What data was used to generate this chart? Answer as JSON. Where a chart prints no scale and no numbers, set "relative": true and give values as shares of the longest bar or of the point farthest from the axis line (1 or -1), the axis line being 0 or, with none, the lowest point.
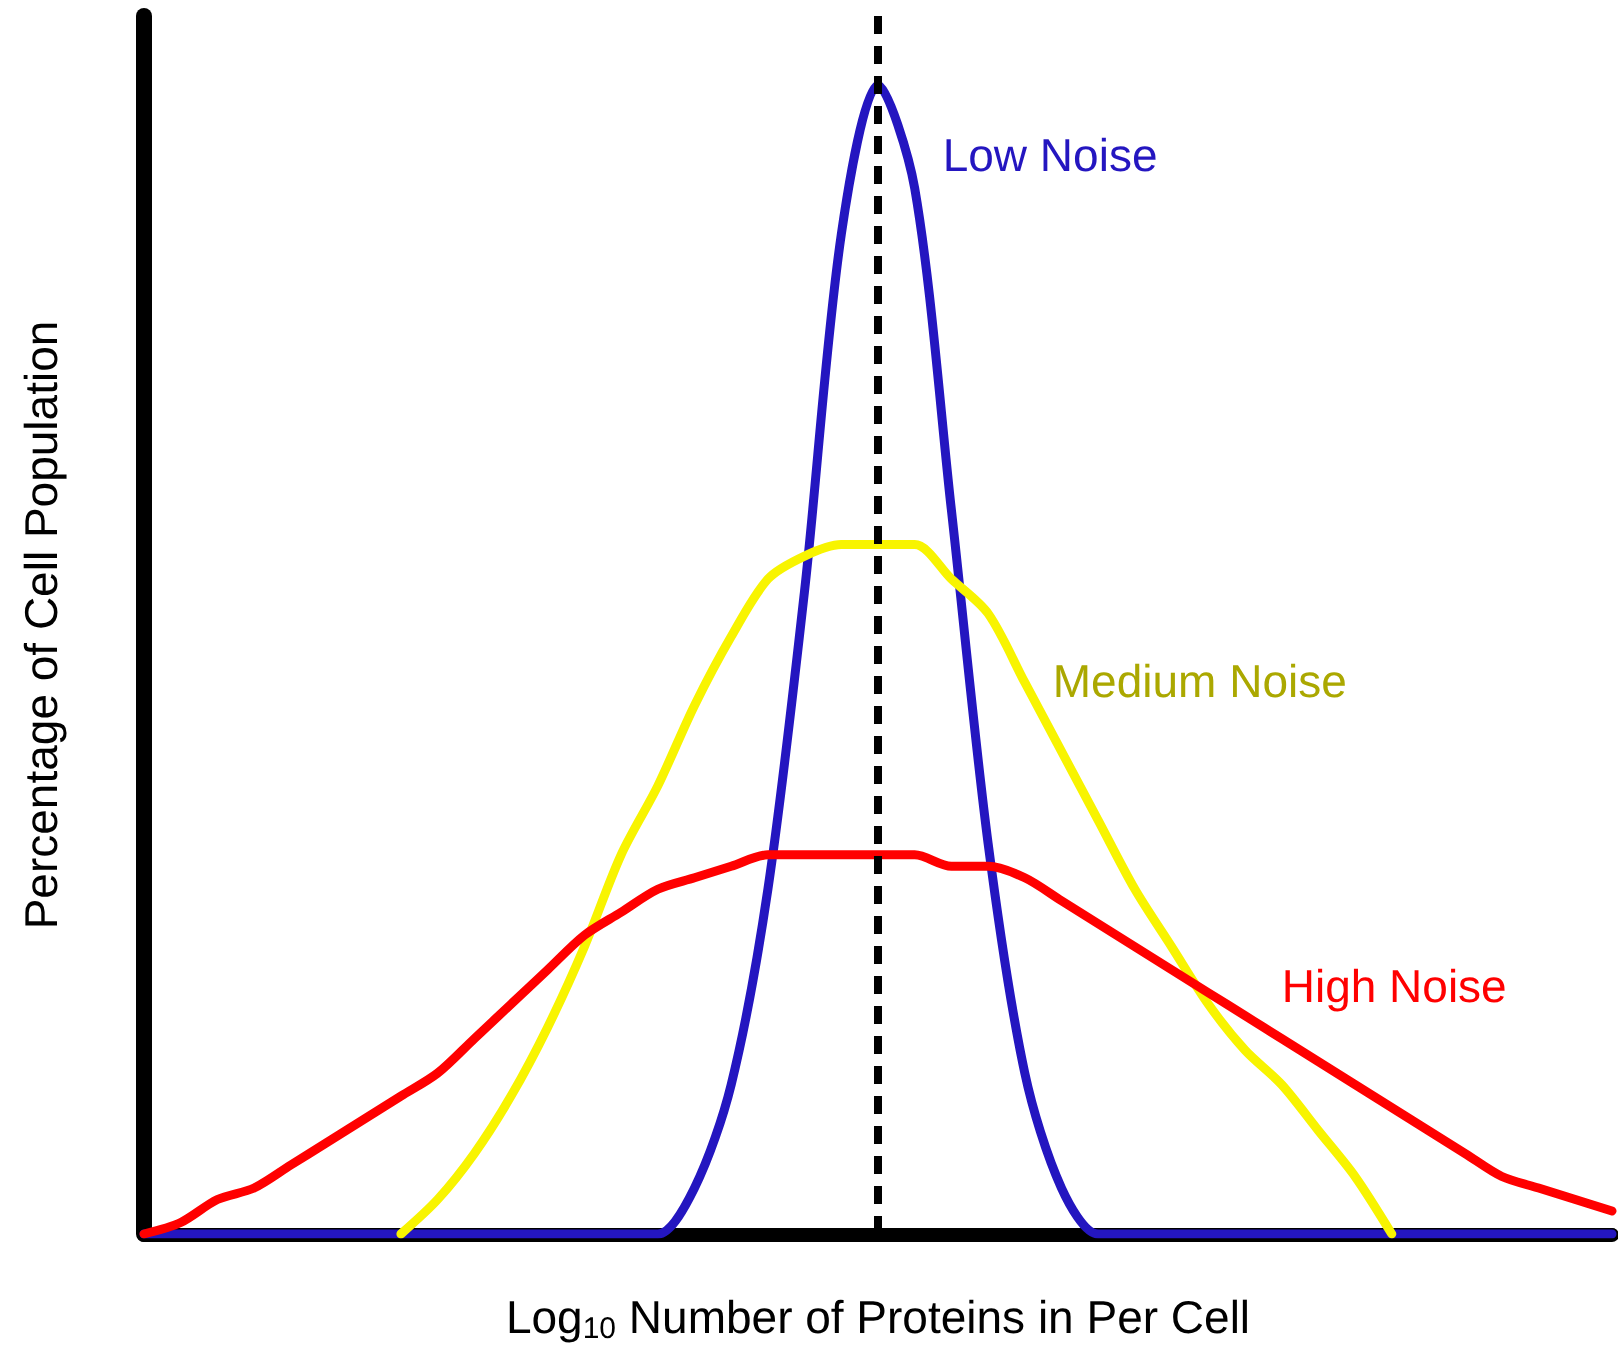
{
  "chart_data": {
    "type": "line",
    "relative": true,
    "xlabel": "Log$_{10}$ Number of Proteins in Per Cell",
    "ylabel": "Percentage of Cell Population",
    "categories": [
      null,
      null,
      null,
      null,
      null,
      null,
      null,
      null,
      null,
      null,
      null,
      null,
      null,
      null,
      null,
      null,
      null,
      null,
      null,
      null,
      null,
      null,
      null,
      null,
      null,
      null,
      null,
      null,
      null,
      null,
      null,
      null,
      null,
      null,
      null,
      null,
      null,
      null,
      null,
      null,
      null
    ],
    "series": [
      {
        "name": "Low Noise",
        "color": "#2416c0",
        "values": [
          0,
          0,
          0,
          0,
          0,
          0,
          0,
          0,
          0,
          0,
          0,
          0,
          0,
          0,
          0,
          0.04,
          0.13,
          0.3,
          0.56,
          0.87,
          1,
          0.91,
          0.63,
          0.34,
          0.14,
          0.04,
          0,
          0,
          0,
          0,
          0,
          0,
          0,
          0,
          0,
          0,
          0,
          0,
          0,
          0,
          0
        ]
      },
      {
        "name": "Medium Noise",
        "color": "#f8f400",
        "values": [
          null,
          null,
          null,
          null,
          null,
          null,
          null,
          0,
          0.03,
          0.07,
          0.12,
          0.18,
          0.25,
          0.33,
          0.39,
          0.46,
          0.52,
          0.57,
          0.59,
          0.6,
          0.6,
          0.6,
          0.57,
          0.54,
          0.48,
          0.42,
          0.36,
          0.3,
          0.25,
          0.2,
          0.16,
          0.13,
          0.09,
          0.05,
          0,
          null,
          null,
          null,
          null,
          null,
          null
        ]
      },
      {
        "name": "High Noise",
        "color": "#ff0000",
        "values": [
          0,
          0.01,
          0.03,
          0.04,
          0.06,
          0.08,
          0.1,
          0.12,
          0.14,
          0.17,
          0.2,
          0.23,
          0.26,
          0.28,
          0.3,
          0.31,
          0.32,
          0.33,
          0.33,
          0.33,
          0.33,
          0.33,
          0.32,
          0.32,
          0.31,
          0.29,
          0.27,
          0.25,
          0.23,
          0.21,
          0.19,
          0.17,
          0.15,
          0.13,
          0.11,
          0.09,
          0.07,
          0.05,
          0.04,
          0.03,
          0.02
        ]
      }
    ],
    "grid": false,
    "legend": false,
    "marker": "none",
    "line_style": "solid"
  }
}
